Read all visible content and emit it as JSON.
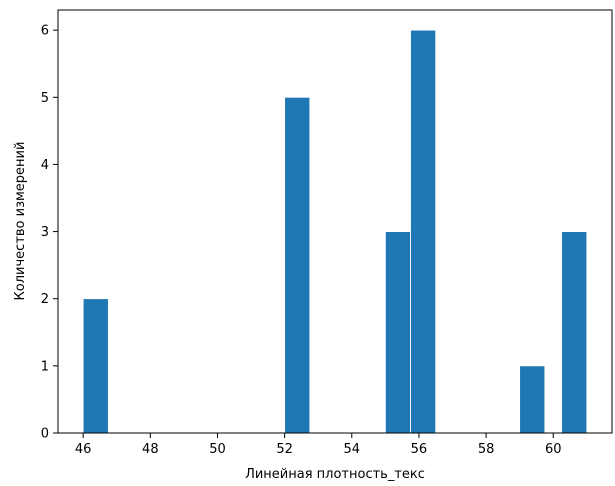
{
  "chart_data": {
    "type": "bar",
    "title": "",
    "xlabel": "Линейная плотность_текс",
    "ylabel": "Количество измерений",
    "xlim": [
      45.25,
      61.75
    ],
    "ylim": [
      0,
      6.3
    ],
    "xticks": [
      46,
      48,
      50,
      52,
      54,
      56,
      58,
      60
    ],
    "yticks": [
      0,
      1,
      2,
      3,
      4,
      5,
      6
    ],
    "grid": false,
    "bar_color": "#1f77b4",
    "bins": [
      {
        "x0": 46.0,
        "x1": 46.75,
        "value": 2
      },
      {
        "x0": 52.0,
        "x1": 52.75,
        "value": 5
      },
      {
        "x0": 55.0,
        "x1": 55.75,
        "value": 3
      },
      {
        "x0": 55.75,
        "x1": 56.5,
        "value": 6
      },
      {
        "x0": 59.0,
        "x1": 59.75,
        "value": 1
      },
      {
        "x0": 60.25,
        "x1": 61.0,
        "value": 3
      }
    ]
  }
}
